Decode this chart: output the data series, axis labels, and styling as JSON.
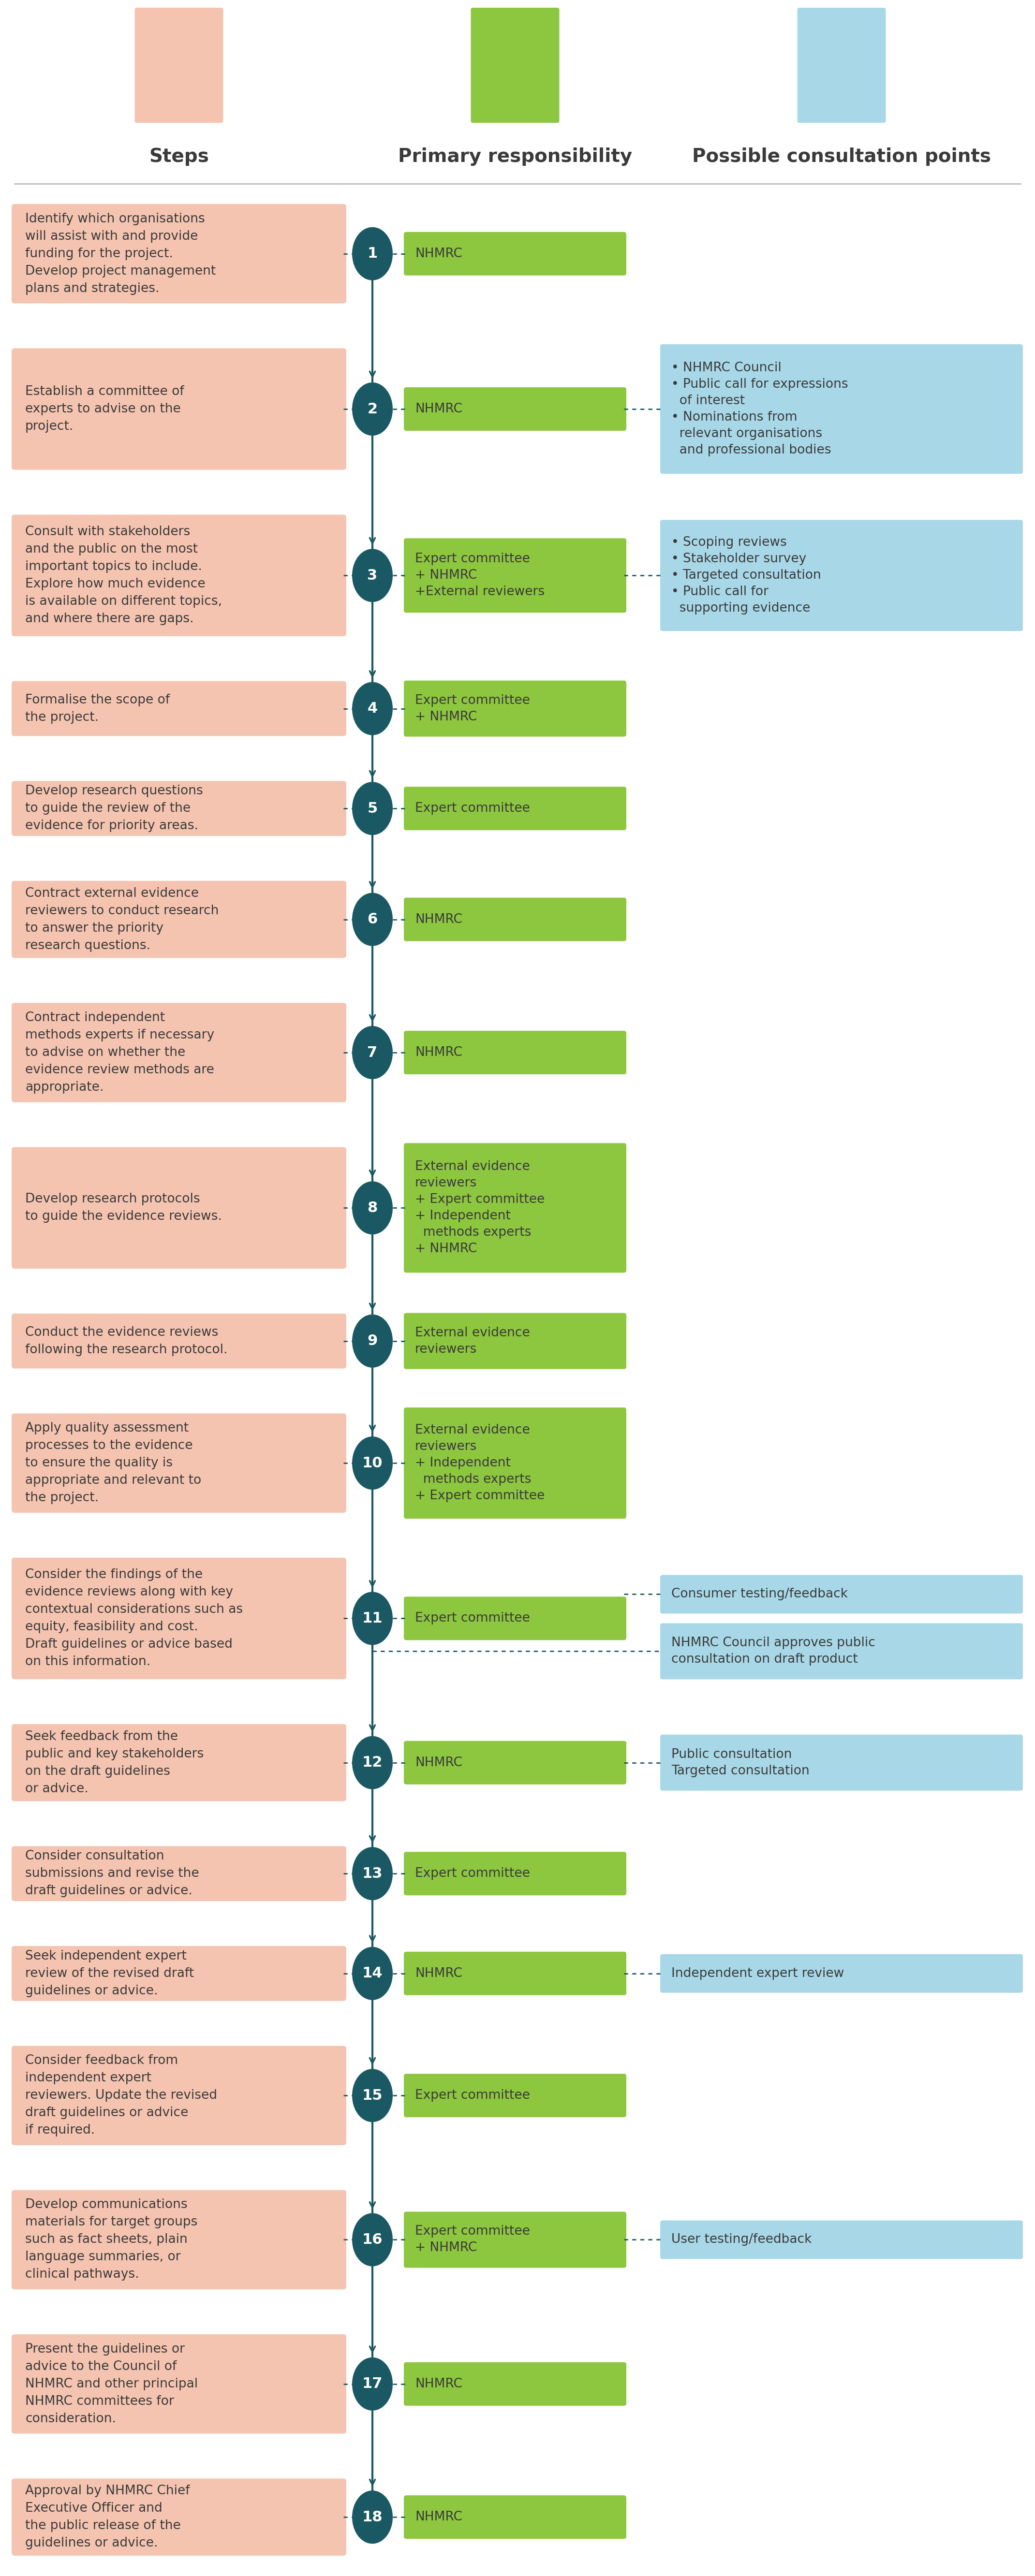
{
  "steps": [
    {
      "number": 1,
      "step_text": "Identify which organisations\nwill assist with and provide\nfunding for the project.\nDevelop project management\nplans and strategies.",
      "primary": "NHMRC",
      "consultation": [],
      "n_step_lines": 5,
      "n_primary_lines": 1
    },
    {
      "number": 2,
      "step_text": "Establish a committee of\nexperts to advise on the\nproject.",
      "primary": "NHMRC",
      "consultation": [
        "• NHMRC Council\n• Public call for expressions\n  of interest\n• Nominations from\n  relevant organisations\n  and professional bodies"
      ],
      "n_step_lines": 3,
      "n_primary_lines": 1
    },
    {
      "number": 3,
      "step_text": "Consult with stakeholders\nand the public on the most\nimportant topics to include.\nExplore how much evidence\nis available on different topics,\nand where there are gaps.",
      "primary": "Expert committee\n+ NHMRC\n+External reviewers",
      "consultation": [
        "• Scoping reviews\n• Stakeholder survey\n• Targeted consultation\n• Public call for\n  supporting evidence"
      ],
      "n_step_lines": 6,
      "n_primary_lines": 3
    },
    {
      "number": 4,
      "step_text": "Formalise the scope of\nthe project.",
      "primary": "Expert committee\n+ NHMRC",
      "consultation": [],
      "n_step_lines": 2,
      "n_primary_lines": 2
    },
    {
      "number": 5,
      "step_text": "Develop research questions\nto guide the review of the\nevidence for priority areas.",
      "primary": "Expert committee",
      "consultation": [],
      "n_step_lines": 3,
      "n_primary_lines": 1
    },
    {
      "number": 6,
      "step_text": "Contract external evidence\nreviewers to conduct research\nto answer the priority\nresearch questions.",
      "primary": "NHMRC",
      "consultation": [],
      "n_step_lines": 4,
      "n_primary_lines": 1
    },
    {
      "number": 7,
      "step_text": "Contract independent\nmethods experts if necessary\nto advise on whether the\nevidence review methods are\nappropriate.",
      "primary": "NHMRC",
      "consultation": [],
      "n_step_lines": 5,
      "n_primary_lines": 1
    },
    {
      "number": 8,
      "step_text": "Develop research protocols\nto guide the evidence reviews.",
      "primary": "External evidence\nreviewers\n+ Expert committee\n+ Independent\n  methods experts\n+ NHMRC",
      "consultation": [],
      "n_step_lines": 2,
      "n_primary_lines": 6
    },
    {
      "number": 9,
      "step_text": "Conduct the evidence reviews\nfollowing the research protocol.",
      "primary": "External evidence\nreviewers",
      "consultation": [],
      "n_step_lines": 2,
      "n_primary_lines": 2
    },
    {
      "number": 10,
      "step_text": "Apply quality assessment\nprocesses to the evidence\nto ensure the quality is\nappropriate and relevant to\nthe project.",
      "primary": "External evidence\nreviewers\n+ Independent\n  methods experts\n+ Expert committee",
      "consultation": [],
      "n_step_lines": 5,
      "n_primary_lines": 5
    },
    {
      "number": 11,
      "step_text": "Consider the findings of the\nevidence reviews along with key\ncontextual considerations such as\nequity, feasibility and cost.\nDraft guidelines or advice based\non this information.",
      "primary": "Expert committee",
      "consultation": [
        "Consumer testing/feedback",
        "NHMRC Council approves public\nconsultation on draft product"
      ],
      "n_step_lines": 6,
      "n_primary_lines": 1
    },
    {
      "number": 12,
      "step_text": "Seek feedback from the\npublic and key stakeholders\non the draft guidelines\nor advice.",
      "primary": "NHMRC",
      "consultation": [
        "Public consultation\nTargeted consultation"
      ],
      "n_step_lines": 4,
      "n_primary_lines": 1
    },
    {
      "number": 13,
      "step_text": "Consider consultation\nsubmissions and revise the\ndraft guidelines or advice.",
      "primary": "Expert committee",
      "consultation": [],
      "n_step_lines": 3,
      "n_primary_lines": 1
    },
    {
      "number": 14,
      "step_text": "Seek independent expert\nreview of the revised draft\nguidelines or advice.",
      "primary": "NHMRC",
      "consultation": [
        "Independent expert review"
      ],
      "n_step_lines": 3,
      "n_primary_lines": 1
    },
    {
      "number": 15,
      "step_text": "Consider feedback from\nindependent expert\nreviewers. Update the revised\ndraft guidelines or advice\nif required.",
      "primary": "Expert committee",
      "consultation": [],
      "n_step_lines": 5,
      "n_primary_lines": 1
    },
    {
      "number": 16,
      "step_text": "Develop communications\nmaterials for target groups\nsuch as fact sheets, plain\nlanguage summaries, or\nclinical pathways.",
      "primary": "Expert committee\n+ NHMRC",
      "consultation": [
        "User testing/feedback"
      ],
      "n_step_lines": 5,
      "n_primary_lines": 2
    },
    {
      "number": 17,
      "step_text": "Present the guidelines or\nadvice to the Council of\nNHMRC and other principal\nNHMRC committees for\nconsideration.",
      "primary": "NHMRC",
      "consultation": [],
      "n_step_lines": 5,
      "n_primary_lines": 1
    },
    {
      "number": 18,
      "step_text": "Approval by NHMRC Chief\nExecutive Officer and\nthe public release of the\nguidelines or advice.",
      "primary": "NHMRC",
      "consultation": [],
      "n_step_lines": 4,
      "n_primary_lines": 1
    }
  ],
  "colors": {
    "step_box": "#F5C4B0",
    "primary_box": "#8DC63F",
    "consultation_box": "#A8D8E8",
    "circle": "#1A5963",
    "line": "#1A5963",
    "text_dark": "#3A3A3A",
    "text_white": "#FFFFFF",
    "background": "#FFFFFF",
    "separator": "#BBBBBB"
  }
}
